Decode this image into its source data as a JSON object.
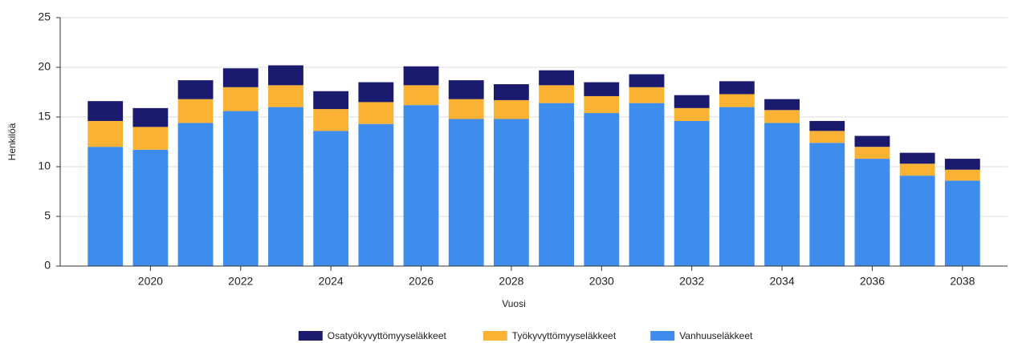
{
  "chart_data": {
    "type": "stacked_bar",
    "x_label": "Vuosi",
    "y_label": "Henkilöä",
    "x": [
      2019,
      2020,
      2021,
      2022,
      2023,
      2024,
      2025,
      2026,
      2027,
      2028,
      2029,
      2030,
      2031,
      2032,
      2033,
      2034,
      2035,
      2036,
      2037,
      2038
    ],
    "series": [
      {
        "name": "Vanhuuseläkkeet",
        "color": "#3e8ded",
        "values": [
          12.0,
          11.7,
          14.4,
          15.6,
          16.0,
          13.6,
          14.3,
          16.2,
          14.8,
          14.8,
          16.4,
          15.4,
          16.4,
          14.6,
          16.0,
          14.4,
          12.4,
          10.8,
          9.1,
          8.6
        ]
      },
      {
        "name": "Työkyvyttömyyseläkkeet",
        "color": "#f9b233",
        "values": [
          2.6,
          2.3,
          2.4,
          2.4,
          2.2,
          2.2,
          2.2,
          2.0,
          2.0,
          1.9,
          1.8,
          1.7,
          1.6,
          1.3,
          1.3,
          1.3,
          1.2,
          1.2,
          1.2,
          1.1
        ]
      },
      {
        "name": "Osatyökyvyttömyyseläkkeet",
        "color": "#1a1a6e",
        "values": [
          2.0,
          1.9,
          1.9,
          1.9,
          2.0,
          1.8,
          2.0,
          1.9,
          1.9,
          1.6,
          1.5,
          1.4,
          1.3,
          1.3,
          1.3,
          1.1,
          1.0,
          1.1,
          1.1,
          1.1
        ]
      }
    ],
    "xlim": [
      2018,
      2039
    ],
    "xticks": [
      2020,
      2022,
      2024,
      2026,
      2028,
      2030,
      2032,
      2034,
      2036,
      2038
    ],
    "ylim": [
      0,
      25
    ],
    "yticks": [
      0,
      5,
      10,
      15,
      20,
      25
    ],
    "grid": true,
    "legend": "bottom"
  }
}
